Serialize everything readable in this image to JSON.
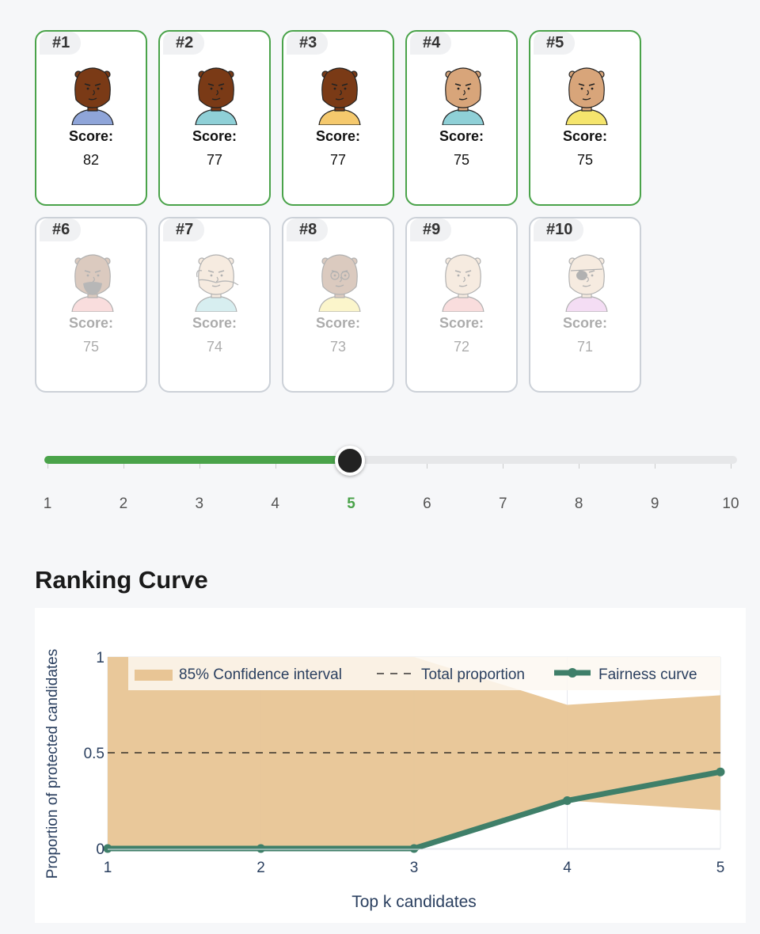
{
  "candidates": [
    {
      "rank": "#1",
      "score_label": "Score:",
      "score": "82",
      "selected": true,
      "skin": "#7a3a16",
      "shirt": "#8fa5d9",
      "accessory": "none"
    },
    {
      "rank": "#2",
      "score_label": "Score:",
      "score": "77",
      "selected": true,
      "skin": "#7a3a16",
      "shirt": "#8fd0d7",
      "accessory": "none"
    },
    {
      "rank": "#3",
      "score_label": "Score:",
      "score": "77",
      "selected": true,
      "skin": "#7a3a16",
      "shirt": "#f5c96d",
      "accessory": "none"
    },
    {
      "rank": "#4",
      "score_label": "Score:",
      "score": "75",
      "selected": true,
      "skin": "#d8a57a",
      "shirt": "#8fd0d7",
      "accessory": "none"
    },
    {
      "rank": "#5",
      "score_label": "Score:",
      "score": "75",
      "selected": true,
      "skin": "#d8a57a",
      "shirt": "#f5e56d",
      "accessory": "none"
    },
    {
      "rank": "#6",
      "score_label": "Score:",
      "score": "75",
      "selected": false,
      "skin": "#9a6a4a",
      "shirt": "#f0a0a0",
      "accessory": "beard"
    },
    {
      "rank": "#7",
      "score_label": "Score:",
      "score": "74",
      "selected": false,
      "skin": "#e8c8a8",
      "shirt": "#8fd0d7",
      "accessory": "mustache"
    },
    {
      "rank": "#8",
      "score_label": "Score:",
      "score": "73",
      "selected": false,
      "skin": "#9a6a4a",
      "shirt": "#f5e56d",
      "accessory": "glasses"
    },
    {
      "rank": "#9",
      "score_label": "Score:",
      "score": "72",
      "selected": false,
      "skin": "#e8c8a8",
      "shirt": "#f0a0a0",
      "accessory": "none"
    },
    {
      "rank": "#10",
      "score_label": "Score:",
      "score": "71",
      "selected": false,
      "skin": "#e8c8a8",
      "shirt": "#e0a0e0",
      "accessory": "eyepatch"
    }
  ],
  "slider": {
    "min": 1,
    "max": 10,
    "value": 5,
    "ticks": [
      "1",
      "2",
      "3",
      "4",
      "5",
      "6",
      "7",
      "8",
      "9",
      "10"
    ]
  },
  "section_title": "Ranking Curve",
  "colors": {
    "selected_border": "#4aa34a",
    "ci_fill": "#e8c595",
    "fairness_line": "#3f7f69",
    "accent": "#4aa34a"
  },
  "chart_data": {
    "type": "line",
    "xlabel": "Top k candidates",
    "ylabel": "Proportion of protected candidates",
    "x": [
      1,
      2,
      3,
      4,
      5
    ],
    "xlim": [
      1,
      5
    ],
    "ylim": [
      0,
      1
    ],
    "x_ticks": [
      "1",
      "2",
      "3",
      "4",
      "5"
    ],
    "y_ticks": [
      {
        "value": 0,
        "label": "0"
      },
      {
        "value": 0.5,
        "label": "0.5"
      },
      {
        "value": 1,
        "label": "1"
      }
    ],
    "legend_position": "top",
    "series": [
      {
        "name": "85% Confidence interval",
        "kind": "band",
        "x": [
          1,
          2,
          3,
          4,
          5
        ],
        "upper": [
          1,
          1,
          1,
          0.75,
          0.8
        ],
        "lower": [
          0,
          0,
          0,
          0.25,
          0.2
        ]
      },
      {
        "name": "Total proportion",
        "kind": "dashed",
        "value": 0.5
      },
      {
        "name": "Fairness curve",
        "kind": "line",
        "x": [
          1,
          2,
          3,
          4,
          5
        ],
        "values": [
          0,
          0,
          0,
          0.25,
          0.4
        ]
      }
    ]
  }
}
